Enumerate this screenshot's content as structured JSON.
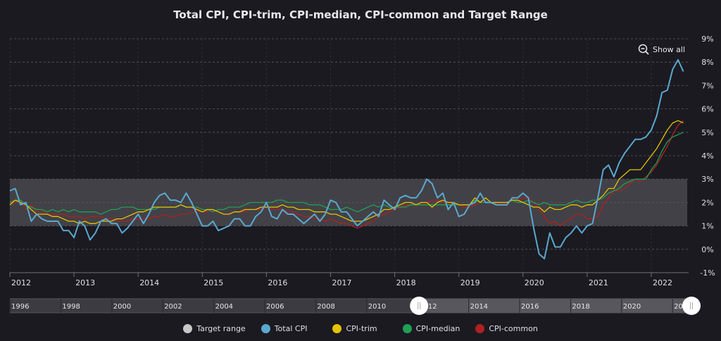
{
  "chart_data": {
    "type": "line",
    "title": "Total CPI, CPI-trim, CPI-median, CPI-common and Target Range",
    "x_start": "2012-01",
    "x_end": "2022-07",
    "frequency": "monthly",
    "x_ticks": [
      "2012",
      "2013",
      "2014",
      "2015",
      "2016",
      "2017",
      "2018",
      "2019",
      "2020",
      "2021",
      "2022"
    ],
    "y_ticks": [
      "-1%",
      "0%",
      "1%",
      "2%",
      "3%",
      "4%",
      "5%",
      "6%",
      "7%",
      "8%",
      "9%"
    ],
    "ylim": [
      -1,
      9
    ],
    "y_axis_side": "right",
    "grid": true,
    "target_range": {
      "name": "Target range",
      "low": 1,
      "high": 3,
      "color": "#c8c8c8"
    },
    "series": [
      {
        "name": "Total CPI",
        "color": "#5aa8d0",
        "values": [
          2.5,
          2.6,
          1.9,
          2.0,
          1.2,
          1.5,
          1.3,
          1.2,
          1.2,
          1.2,
          0.8,
          0.8,
          0.5,
          1.2,
          1.0,
          0.4,
          0.7,
          1.2,
          1.3,
          1.1,
          1.1,
          0.7,
          0.9,
          1.2,
          1.5,
          1.1,
          1.5,
          2.0,
          2.3,
          2.4,
          2.1,
          2.1,
          2.0,
          2.4,
          2.0,
          1.5,
          1.0,
          1.0,
          1.2,
          0.8,
          0.9,
          1.0,
          1.3,
          1.3,
          1.0,
          1.0,
          1.4,
          1.6,
          2.0,
          1.4,
          1.3,
          1.7,
          1.5,
          1.5,
          1.3,
          1.1,
          1.3,
          1.5,
          1.2,
          1.5,
          2.1,
          2.0,
          1.6,
          1.6,
          1.3,
          1.0,
          1.2,
          1.4,
          1.6,
          1.4,
          2.1,
          1.9,
          1.7,
          2.2,
          2.3,
          2.2,
          2.2,
          2.5,
          3.0,
          2.8,
          2.2,
          2.4,
          1.7,
          2.0,
          1.4,
          1.5,
          1.9,
          2.0,
          2.4,
          2.0,
          2.0,
          1.9,
          1.9,
          1.9,
          2.2,
          2.2,
          2.4,
          2.2,
          0.9,
          -0.2,
          -0.4,
          0.7,
          0.1,
          0.1,
          0.5,
          0.7,
          1.0,
          0.7,
          1.0,
          1.1,
          2.2,
          3.4,
          3.6,
          3.1,
          3.7,
          4.1,
          4.4,
          4.7,
          4.7,
          4.8,
          5.1,
          5.7,
          6.7,
          6.8,
          7.7,
          8.1,
          7.6
        ]
      },
      {
        "name": "CPI-trim",
        "color": "#e6c200",
        "values": [
          1.9,
          2.1,
          2.0,
          1.9,
          1.7,
          1.5,
          1.5,
          1.5,
          1.4,
          1.4,
          1.3,
          1.2,
          1.2,
          1.1,
          1.2,
          1.1,
          1.1,
          1.2,
          1.2,
          1.2,
          1.3,
          1.3,
          1.4,
          1.5,
          1.6,
          1.6,
          1.7,
          1.8,
          1.8,
          1.8,
          1.8,
          1.8,
          1.9,
          1.8,
          1.8,
          1.7,
          1.6,
          1.7,
          1.7,
          1.6,
          1.5,
          1.5,
          1.6,
          1.6,
          1.7,
          1.7,
          1.7,
          1.8,
          1.8,
          1.8,
          1.8,
          1.9,
          1.8,
          1.8,
          1.7,
          1.7,
          1.7,
          1.6,
          1.6,
          1.6,
          1.5,
          1.5,
          1.4,
          1.3,
          1.2,
          1.2,
          1.2,
          1.3,
          1.4,
          1.5,
          1.7,
          1.7,
          1.8,
          1.9,
          2.0,
          2.0,
          1.9,
          2.0,
          2.0,
          1.8,
          2.0,
          2.1,
          2.0,
          2.0,
          1.9,
          1.9,
          1.9,
          2.2,
          2.0,
          2.2,
          2.0,
          2.0,
          2.0,
          2.0,
          2.1,
          2.1,
          2.0,
          1.9,
          1.8,
          1.8,
          1.6,
          1.8,
          1.7,
          1.7,
          1.8,
          1.9,
          1.9,
          1.8,
          1.9,
          1.9,
          2.1,
          2.3,
          2.6,
          2.6,
          3.0,
          3.2,
          3.4,
          3.4,
          3.4,
          3.7,
          4.0,
          4.3,
          4.7,
          5.1,
          5.4,
          5.5,
          5.4
        ]
      },
      {
        "name": "CPI-median",
        "color": "#1fa055",
        "values": [
          2.0,
          2.1,
          2.1,
          1.9,
          1.8,
          1.7,
          1.7,
          1.6,
          1.7,
          1.6,
          1.7,
          1.6,
          1.7,
          1.6,
          1.6,
          1.6,
          1.6,
          1.5,
          1.6,
          1.7,
          1.7,
          1.8,
          1.8,
          1.8,
          1.7,
          1.7,
          1.7,
          1.7,
          1.8,
          1.8,
          1.8,
          1.8,
          1.9,
          1.8,
          1.8,
          1.8,
          1.7,
          1.7,
          1.6,
          1.7,
          1.7,
          1.8,
          1.8,
          1.8,
          1.9,
          2.0,
          2.0,
          2.0,
          2.0,
          2.0,
          2.1,
          2.1,
          2.0,
          2.0,
          2.0,
          2.0,
          1.9,
          1.9,
          1.9,
          1.8,
          1.7,
          1.7,
          1.7,
          1.8,
          1.7,
          1.6,
          1.7,
          1.8,
          1.9,
          1.8,
          1.9,
          1.8,
          1.8,
          1.8,
          1.8,
          1.9,
          1.9,
          1.9,
          1.9,
          1.9,
          1.9,
          1.9,
          1.9,
          1.9,
          1.9,
          1.9,
          1.9,
          2.1,
          2.0,
          2.0,
          2.0,
          2.0,
          2.0,
          2.0,
          2.1,
          2.0,
          2.0,
          2.1,
          2.0,
          1.9,
          2.0,
          1.9,
          1.9,
          1.9,
          1.9,
          2.0,
          2.1,
          2.0,
          2.0,
          2.1,
          2.1,
          2.2,
          2.4,
          2.5,
          2.6,
          2.8,
          2.9,
          3.0,
          3.0,
          3.0,
          3.4,
          3.7,
          4.2,
          4.6,
          4.8,
          4.9,
          5.0
        ]
      },
      {
        "name": "CPI-common",
        "color": "#b02020",
        "values": [
          1.9,
          2.0,
          2.1,
          1.7,
          1.9,
          1.6,
          1.6,
          1.5,
          1.5,
          1.5,
          1.5,
          1.4,
          1.4,
          1.4,
          1.3,
          1.4,
          1.4,
          1.4,
          1.3,
          1.3,
          1.2,
          1.2,
          1.2,
          1.3,
          1.3,
          1.3,
          1.3,
          1.4,
          1.4,
          1.5,
          1.4,
          1.4,
          1.5,
          1.5,
          1.6,
          1.6,
          1.6,
          1.6,
          1.7,
          1.6,
          1.5,
          1.5,
          1.6,
          1.6,
          1.6,
          1.7,
          1.7,
          1.7,
          1.8,
          1.7,
          1.7,
          1.7,
          1.6,
          1.6,
          1.5,
          1.4,
          1.4,
          1.3,
          1.3,
          1.2,
          1.3,
          1.2,
          1.1,
          1.1,
          1.0,
          0.9,
          1.0,
          1.1,
          1.2,
          1.4,
          1.5,
          1.6,
          1.7,
          1.8,
          1.9,
          1.9,
          1.9,
          1.9,
          2.0,
          2.1,
          2.1,
          2.0,
          2.0,
          1.9,
          1.9,
          1.8,
          1.8,
          1.9,
          2.0,
          2.0,
          2.0,
          2.0,
          1.9,
          2.0,
          2.1,
          2.1,
          2.2,
          2.2,
          2.0,
          1.7,
          1.4,
          1.1,
          1.2,
          1.0,
          1.2,
          1.3,
          1.5,
          1.5,
          1.3,
          1.3,
          1.4,
          1.9,
          2.2,
          2.5,
          2.5,
          2.6,
          2.8,
          3.0,
          2.9,
          3.1,
          3.3,
          3.6,
          4.0,
          4.4,
          4.9,
          5.3,
          5.5
        ]
      }
    ],
    "legend_position": "bottom"
  },
  "controls": {
    "show_all_label": "Show all",
    "zoom_icon": "zoom-out-icon"
  },
  "navigator": {
    "ticks": [
      "1996",
      "1998",
      "2000",
      "2002",
      "2004",
      "2006",
      "2008",
      "2010",
      "2012",
      "2014",
      "2016",
      "2018",
      "2020",
      "2022"
    ],
    "selected_from": "2012",
    "selected_to": "2022"
  }
}
